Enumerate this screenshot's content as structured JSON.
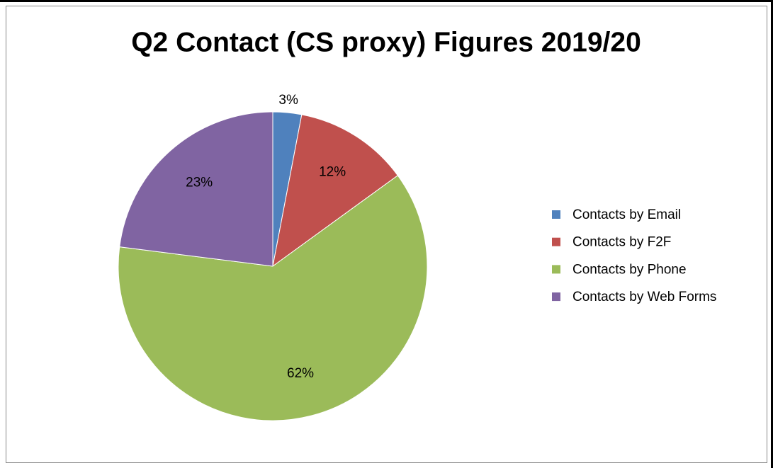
{
  "chart_data": {
    "type": "pie",
    "title": "Q2 Contact (CS proxy) Figures 2019/20",
    "categories": [
      "Contacts by Email",
      "Contacts by F2F",
      "Contacts by Phone",
      "Contacts by Web Forms"
    ],
    "values": [
      3,
      12,
      62,
      23
    ],
    "value_labels": [
      "3%",
      "12%",
      "62%",
      "23%"
    ],
    "colors": [
      "#4f81bd",
      "#c0504d",
      "#9bbb59",
      "#8064a2"
    ],
    "legend": "right"
  }
}
